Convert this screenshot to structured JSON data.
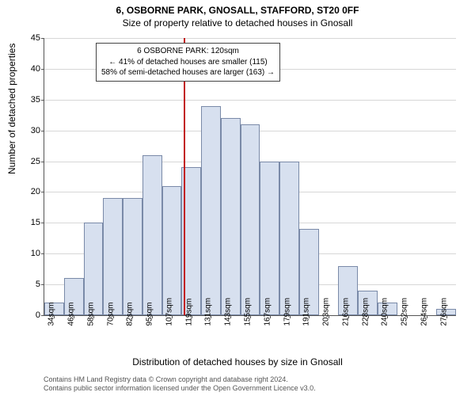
{
  "header": {
    "address": "6, OSBORNE PARK, GNOSALL, STAFFORD, ST20 0FF",
    "subtitle": "Size of property relative to detached houses in Gnosall"
  },
  "chart": {
    "type": "histogram",
    "ylabel": "Number of detached properties",
    "xlabel": "Distribution of detached houses by size in Gnosall",
    "ylim": [
      0,
      45
    ],
    "ytick_step": 5,
    "xtick_labels": [
      "34sqm",
      "46sqm",
      "58sqm",
      "70sqm",
      "82sqm",
      "95sqm",
      "107sqm",
      "119sqm",
      "131sqm",
      "143sqm",
      "155sqm",
      "167sqm",
      "179sqm",
      "191sqm",
      "203sqm",
      "216sqm",
      "228sqm",
      "240sqm",
      "252sqm",
      "264sqm",
      "276sqm"
    ],
    "values": [
      2,
      6,
      15,
      19,
      19,
      26,
      21,
      24,
      34,
      32,
      31,
      25,
      25,
      14,
      0,
      8,
      4,
      2,
      0,
      0,
      1
    ],
    "bar_fill": "#d7e0ef",
    "bar_border": "#7a8aa8",
    "grid_color": "#d7d7d7",
    "background_color": "#ffffff",
    "marker": {
      "x_index": 7.1,
      "color": "#c21515",
      "annotation": {
        "line1": "6 OSBORNE PARK: 120sqm",
        "line2": "← 41% of detached houses are smaller (115)",
        "line3": "58% of semi-detached houses are larger (163) →"
      }
    }
  },
  "footer": {
    "line1": "Contains HM Land Registry data © Crown copyright and database right 2024.",
    "line2": "Contains public sector information licensed under the Open Government Licence v3.0."
  }
}
